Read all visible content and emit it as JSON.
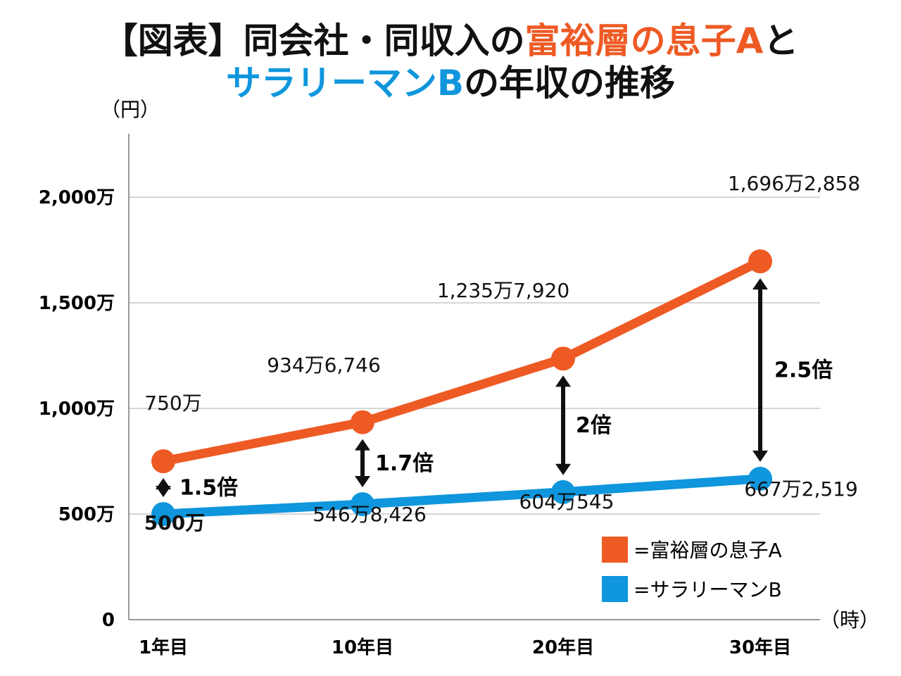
{
  "title": {
    "line1": [
      {
        "text": "【図表】同会社・同収入の",
        "color": "#111111"
      },
      {
        "text": "富裕層の息子A",
        "color": "#EE5A24"
      },
      {
        "text": "と",
        "color": "#111111"
      }
    ],
    "line2": [
      {
        "text": "サラリーマンB",
        "color": "#0F96DC"
      },
      {
        "text": "の年収の推移",
        "color": "#111111"
      }
    ]
  },
  "chart_data": {
    "type": "line",
    "categories": [
      "1年目",
      "10年目",
      "20年目",
      "30年目"
    ],
    "y_unit_label": "（円）",
    "x_unit_label": "（時）",
    "y_ticks": [
      {
        "value": 0,
        "label": "0"
      },
      {
        "value": 5000000,
        "label": "500万"
      },
      {
        "value": 10000000,
        "label": "1,000万"
      },
      {
        "value": 15000000,
        "label": "1,500万"
      },
      {
        "value": 20000000,
        "label": "2,000万"
      }
    ],
    "ylim": [
      0,
      23000000
    ],
    "grid": true,
    "series": [
      {
        "name": "=富裕層の息子A",
        "color": "#EE5A24",
        "values": [
          7500000,
          9346746,
          12357920,
          16962858
        ],
        "labels": [
          "750万",
          "934万6,746",
          "1,235万7,920",
          "1,696万2,858"
        ]
      },
      {
        "name": "=サラリーマンB",
        "color": "#0F96DC",
        "values": [
          5000000,
          5468426,
          6040545,
          6672519
        ],
        "labels": [
          "500万",
          "546万8,426",
          "604万545",
          "667万2,519"
        ]
      }
    ],
    "ratios": [
      "1.5倍",
      "1.7倍",
      "2倍",
      "2.5倍"
    ],
    "legend_position": "bottom-right"
  }
}
